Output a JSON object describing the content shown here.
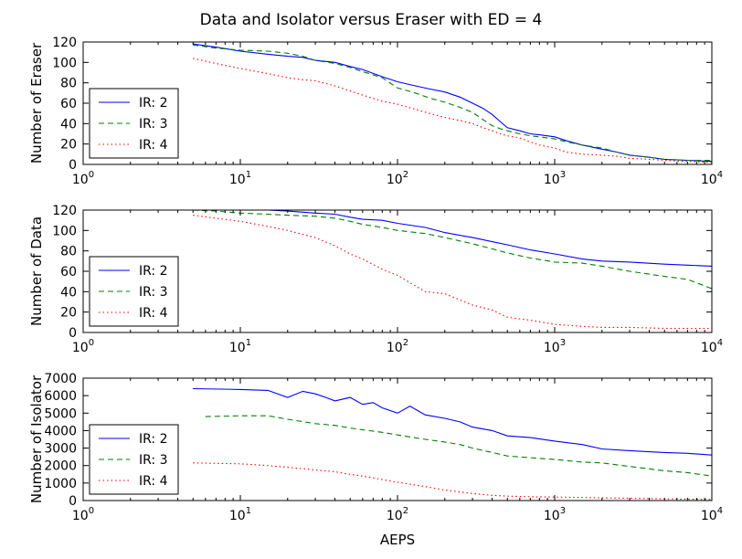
{
  "figure": {
    "title": "Data and Isolator versus Eraser with ED = 4",
    "xlabel": "AEPS"
  },
  "chart_data": [
    {
      "type": "line",
      "ylabel": "Number of Eraser",
      "xscale": "log",
      "xlim": [
        1,
        10000
      ],
      "ylim": [
        0,
        120
      ],
      "yticks": [
        0,
        20,
        40,
        60,
        80,
        100,
        120
      ],
      "xticks": [
        1,
        10,
        100,
        1000,
        10000
      ],
      "xtick_labels": [
        [
          "10",
          "0"
        ],
        [
          "10",
          "1"
        ],
        [
          "10",
          "2"
        ],
        [
          "10",
          "3"
        ],
        [
          "10",
          "4"
        ]
      ],
      "legend": "left",
      "series": [
        {
          "name": "IR: 2",
          "color": "#0000ff",
          "style": "solid",
          "x": [
            5,
            7,
            10,
            15,
            20,
            25,
            30,
            40,
            50,
            60,
            80,
            100,
            130,
            160,
            200,
            250,
            300,
            350,
            400,
            450,
            500,
            600,
            700,
            800,
            1000,
            1200,
            1500,
            2000,
            2500,
            3000,
            4000,
            5000,
            7000,
            10000
          ],
          "y": [
            118,
            115,
            111,
            108,
            106,
            105,
            102,
            100,
            96,
            93,
            86,
            81,
            77,
            74,
            71,
            66,
            60,
            55,
            49,
            42,
            36,
            33,
            30,
            29,
            27,
            23,
            19,
            15,
            12,
            9,
            7,
            5,
            4,
            3
          ]
        },
        {
          "name": "IR: 3",
          "color": "#008000",
          "style": "dashed",
          "x": [
            5,
            7,
            10,
            15,
            20,
            25,
            30,
            40,
            50,
            60,
            80,
            100,
            130,
            160,
            200,
            250,
            300,
            350,
            400,
            450,
            500,
            600,
            700,
            800,
            1000,
            1200,
            1500,
            2000,
            2500,
            3000,
            4000,
            5000,
            7000,
            10000
          ],
          "y": [
            117,
            114,
            112,
            111,
            109,
            106,
            102,
            99,
            95,
            91,
            85,
            75,
            70,
            65,
            61,
            56,
            51,
            44,
            38,
            35,
            33,
            30,
            28,
            27,
            25,
            22,
            19,
            16,
            12,
            9,
            7,
            5,
            4,
            4
          ]
        },
        {
          "name": "IR: 4",
          "color": "#ff0000",
          "style": "dotted",
          "x": [
            5,
            7,
            10,
            15,
            20,
            25,
            30,
            40,
            50,
            60,
            80,
            100,
            130,
            160,
            200,
            250,
            300,
            350,
            400,
            450,
            500,
            600,
            700,
            800,
            1000,
            1200,
            1500,
            2000,
            2500,
            3000,
            4000,
            5000,
            7000,
            10000
          ],
          "y": [
            104,
            99,
            94,
            89,
            85,
            83,
            82,
            77,
            72,
            68,
            62,
            59,
            54,
            50,
            46,
            43,
            40,
            36,
            33,
            30,
            28,
            26,
            22,
            19,
            16,
            12,
            10,
            9,
            8,
            6,
            5,
            4,
            3,
            2
          ]
        }
      ]
    },
    {
      "type": "line",
      "ylabel": "Number of Data",
      "xscale": "log",
      "xlim": [
        1,
        10000
      ],
      "ylim": [
        0,
        120
      ],
      "yticks": [
        0,
        20,
        40,
        60,
        80,
        100,
        120
      ],
      "xticks": [
        1,
        10,
        100,
        1000,
        10000
      ],
      "xtick_labels": [
        [
          "10",
          "0"
        ],
        [
          "10",
          "1"
        ],
        [
          "10",
          "2"
        ],
        [
          "10",
          "3"
        ],
        [
          "10",
          "4"
        ]
      ],
      "legend": "left",
      "series": [
        {
          "name": "IR: 2",
          "color": "#0000ff",
          "style": "solid",
          "x": [
            5,
            7,
            10,
            15,
            20,
            30,
            40,
            50,
            60,
            80,
            100,
            150,
            200,
            300,
            400,
            500,
            700,
            1000,
            1500,
            2000,
            3000,
            5000,
            7000,
            10000
          ],
          "y": [
            120,
            120,
            120,
            120,
            119,
            117,
            116,
            113,
            111,
            110,
            107,
            103,
            98,
            93,
            89,
            86,
            81,
            77,
            72,
            70,
            69,
            67,
            66,
            65
          ]
        },
        {
          "name": "IR: 3",
          "color": "#008000",
          "style": "dashed",
          "x": [
            5,
            7,
            10,
            15,
            20,
            30,
            40,
            50,
            60,
            80,
            100,
            150,
            200,
            300,
            400,
            500,
            700,
            1000,
            1500,
            2000,
            3000,
            5000,
            7000,
            10000
          ],
          "y": [
            120,
            119,
            117,
            116,
            115,
            114,
            112,
            109,
            106,
            103,
            100,
            97,
            93,
            87,
            82,
            78,
            73,
            69,
            68,
            65,
            60,
            55,
            52,
            43
          ]
        },
        {
          "name": "IR: 4",
          "color": "#ff0000",
          "style": "dotted",
          "x": [
            5,
            7,
            10,
            15,
            20,
            30,
            40,
            50,
            60,
            80,
            100,
            150,
            200,
            300,
            400,
            500,
            700,
            1000,
            1500,
            2000,
            3000,
            5000,
            7000,
            10000
          ],
          "y": [
            115,
            112,
            109,
            104,
            100,
            93,
            85,
            77,
            72,
            62,
            56,
            40,
            38,
            27,
            22,
            15,
            12,
            8,
            6,
            5,
            5,
            4,
            4,
            4
          ]
        }
      ]
    },
    {
      "type": "line",
      "ylabel": "Number of Isolator",
      "xscale": "log",
      "xlim": [
        1,
        10000
      ],
      "ylim": [
        0,
        7000
      ],
      "yticks": [
        0,
        1000,
        2000,
        3000,
        4000,
        5000,
        6000,
        7000
      ],
      "xticks": [
        1,
        10,
        100,
        1000,
        10000
      ],
      "xtick_labels": [
        [
          "10",
          "0"
        ],
        [
          "10",
          "1"
        ],
        [
          "10",
          "2"
        ],
        [
          "10",
          "3"
        ],
        [
          "10",
          "4"
        ]
      ],
      "legend": "left",
      "series": [
        {
          "name": "IR: 2",
          "color": "#0000ff",
          "style": "solid",
          "x": [
            5,
            10,
            15,
            20,
            25,
            30,
            35,
            40,
            50,
            60,
            70,
            80,
            100,
            120,
            150,
            200,
            250,
            300,
            400,
            500,
            700,
            1000,
            1500,
            2000,
            3000,
            5000,
            7000,
            10000
          ],
          "y": [
            6400,
            6350,
            6300,
            5900,
            6250,
            6100,
            5900,
            5700,
            5900,
            5500,
            5600,
            5300,
            5000,
            5400,
            4900,
            4700,
            4500,
            4200,
            4000,
            3700,
            3600,
            3400,
            3200,
            2950,
            2850,
            2750,
            2700,
            2600
          ]
        },
        {
          "name": "IR: 3",
          "color": "#008000",
          "style": "dashed",
          "x": [
            6,
            10,
            15,
            20,
            30,
            40,
            50,
            60,
            80,
            100,
            150,
            200,
            250,
            300,
            400,
            500,
            700,
            1000,
            1500,
            2000,
            3000,
            5000,
            7000,
            10000
          ],
          "y": [
            4800,
            4850,
            4850,
            4650,
            4400,
            4300,
            4150,
            4050,
            3900,
            3750,
            3500,
            3350,
            3200,
            3000,
            2750,
            2550,
            2450,
            2350,
            2200,
            2150,
            1950,
            1700,
            1600,
            1400
          ]
        },
        {
          "name": "IR: 4",
          "color": "#ff0000",
          "style": "dotted",
          "x": [
            5,
            10,
            15,
            20,
            30,
            40,
            50,
            60,
            80,
            100,
            150,
            200,
            300,
            400,
            500,
            700,
            1000,
            1500,
            2000,
            3000,
            5000,
            7000,
            10000
          ],
          "y": [
            2150,
            2100,
            2000,
            1900,
            1750,
            1650,
            1500,
            1400,
            1200,
            1050,
            800,
            600,
            400,
            300,
            250,
            220,
            200,
            180,
            150,
            130,
            100,
            80,
            70
          ]
        }
      ]
    }
  ]
}
